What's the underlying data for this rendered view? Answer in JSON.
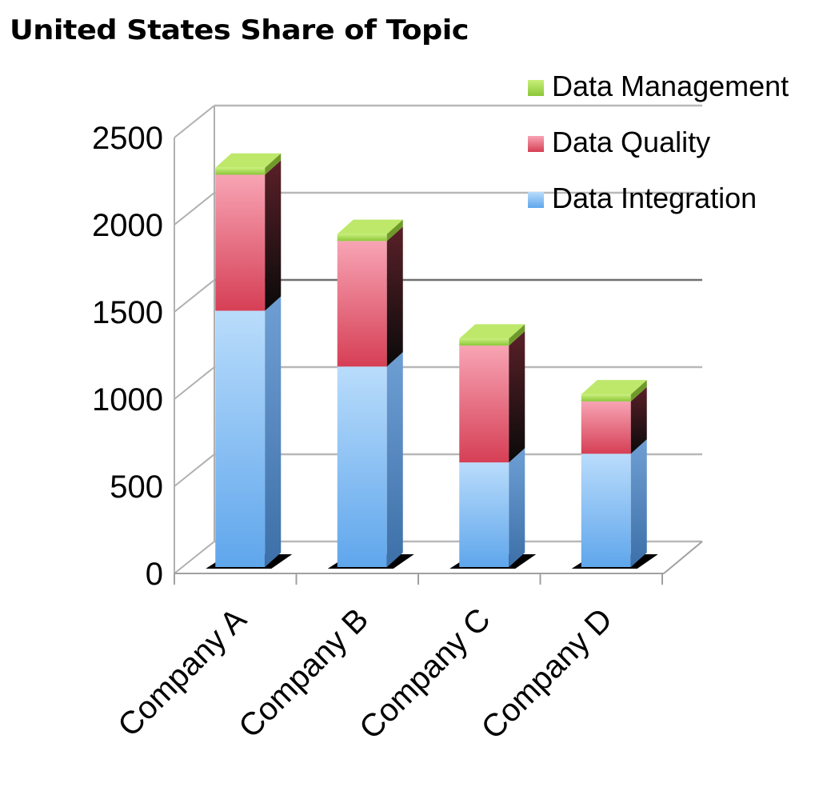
{
  "chart_data": {
    "type": "bar",
    "stacked": true,
    "three_d": true,
    "title": "United States Share of Topic",
    "xlabel": "",
    "ylabel": "",
    "categories": [
      "Company A",
      "Company B",
      "Company C",
      "Company D"
    ],
    "ylim": [
      0,
      2500
    ],
    "yticks": [
      "0",
      "500",
      "1000",
      "1500",
      "2000",
      "2500"
    ],
    "grid": true,
    "legend_position": "top-right",
    "series": [
      {
        "name": "Data Integration",
        "values": [
          1470,
          1150,
          600,
          650
        ],
        "color": "#7fb9f0"
      },
      {
        "name": "Data Quality",
        "values": [
          780,
          720,
          670,
          300
        ],
        "color": "#e35a6e"
      },
      {
        "name": "Data Management",
        "values": [
          40,
          40,
          40,
          40
        ],
        "color": "#a8d84a"
      }
    ]
  }
}
